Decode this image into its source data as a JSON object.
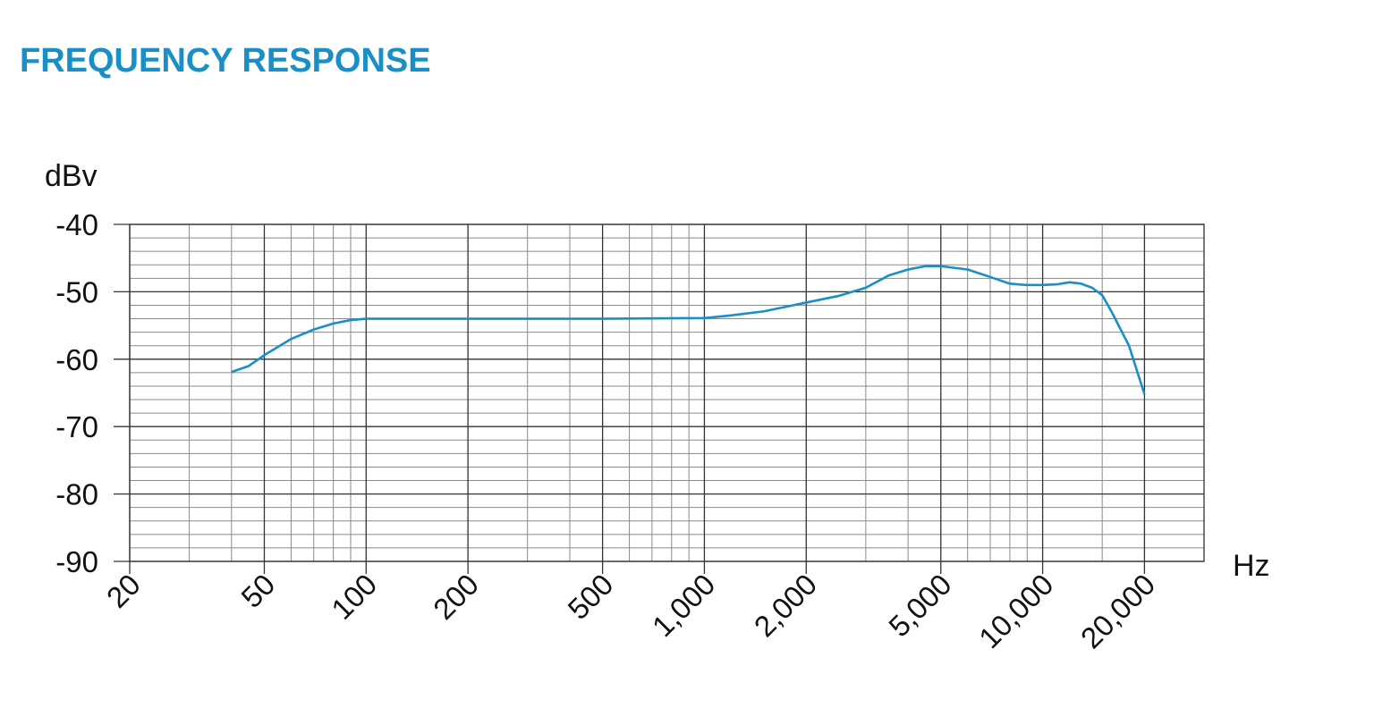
{
  "chart_data": {
    "type": "line",
    "title": "FREQUENCY RESPONSE",
    "xlabel": "Hz",
    "ylabel": "dBv",
    "x": [
      40,
      45,
      50,
      60,
      70,
      80,
      90,
      100,
      200,
      500,
      1000,
      1200,
      1500,
      2000,
      2500,
      3000,
      3500,
      4000,
      4500,
      5000,
      6000,
      7000,
      8000,
      9000,
      10000,
      11000,
      12000,
      13000,
      14000,
      15000,
      16000,
      18000,
      20000
    ],
    "values": [
      -61.9,
      -61,
      -59.4,
      -57,
      -55.6,
      -54.7,
      -54.2,
      -54,
      -54,
      -54,
      -53.9,
      -53.5,
      -52.9,
      -51.6,
      -50.6,
      -49.4,
      -47.6,
      -46.7,
      -46.2,
      -46.2,
      -46.7,
      -47.8,
      -48.8,
      -49,
      -49,
      -48.9,
      -48.6,
      -48.8,
      -49.4,
      -50.5,
      -53,
      -58,
      -65.2
    ],
    "color": "#1a8fc6",
    "xscale": "log",
    "xlim": [
      20,
      30000
    ],
    "ylim": [
      -90,
      -40
    ],
    "xticks": [
      20,
      50,
      100,
      200,
      500,
      {
        "value": 1000,
        "label": "1,000"
      },
      {
        "value": 2000,
        "label": "2,000"
      },
      {
        "value": 5000,
        "label": "5,000"
      },
      {
        "value": 10000,
        "label": "10,000"
      },
      {
        "value": 20000,
        "label": "20,000"
      }
    ],
    "yticks": [
      -40,
      -50,
      -60,
      -70,
      -80,
      -90
    ],
    "x_minor_grid": [
      30,
      40,
      60,
      70,
      80,
      90,
      300,
      400,
      600,
      700,
      800,
      900,
      3000,
      4000,
      6000,
      7000,
      8000,
      9000,
      15000
    ],
    "y_minor_grid": [
      -42,
      -44,
      -46,
      -48,
      -52,
      -54,
      -56,
      -58,
      -62,
      -64,
      -66,
      -68,
      -72,
      -74,
      -76,
      -78,
      -82,
      -84,
      -86,
      -88
    ],
    "grid": true
  }
}
